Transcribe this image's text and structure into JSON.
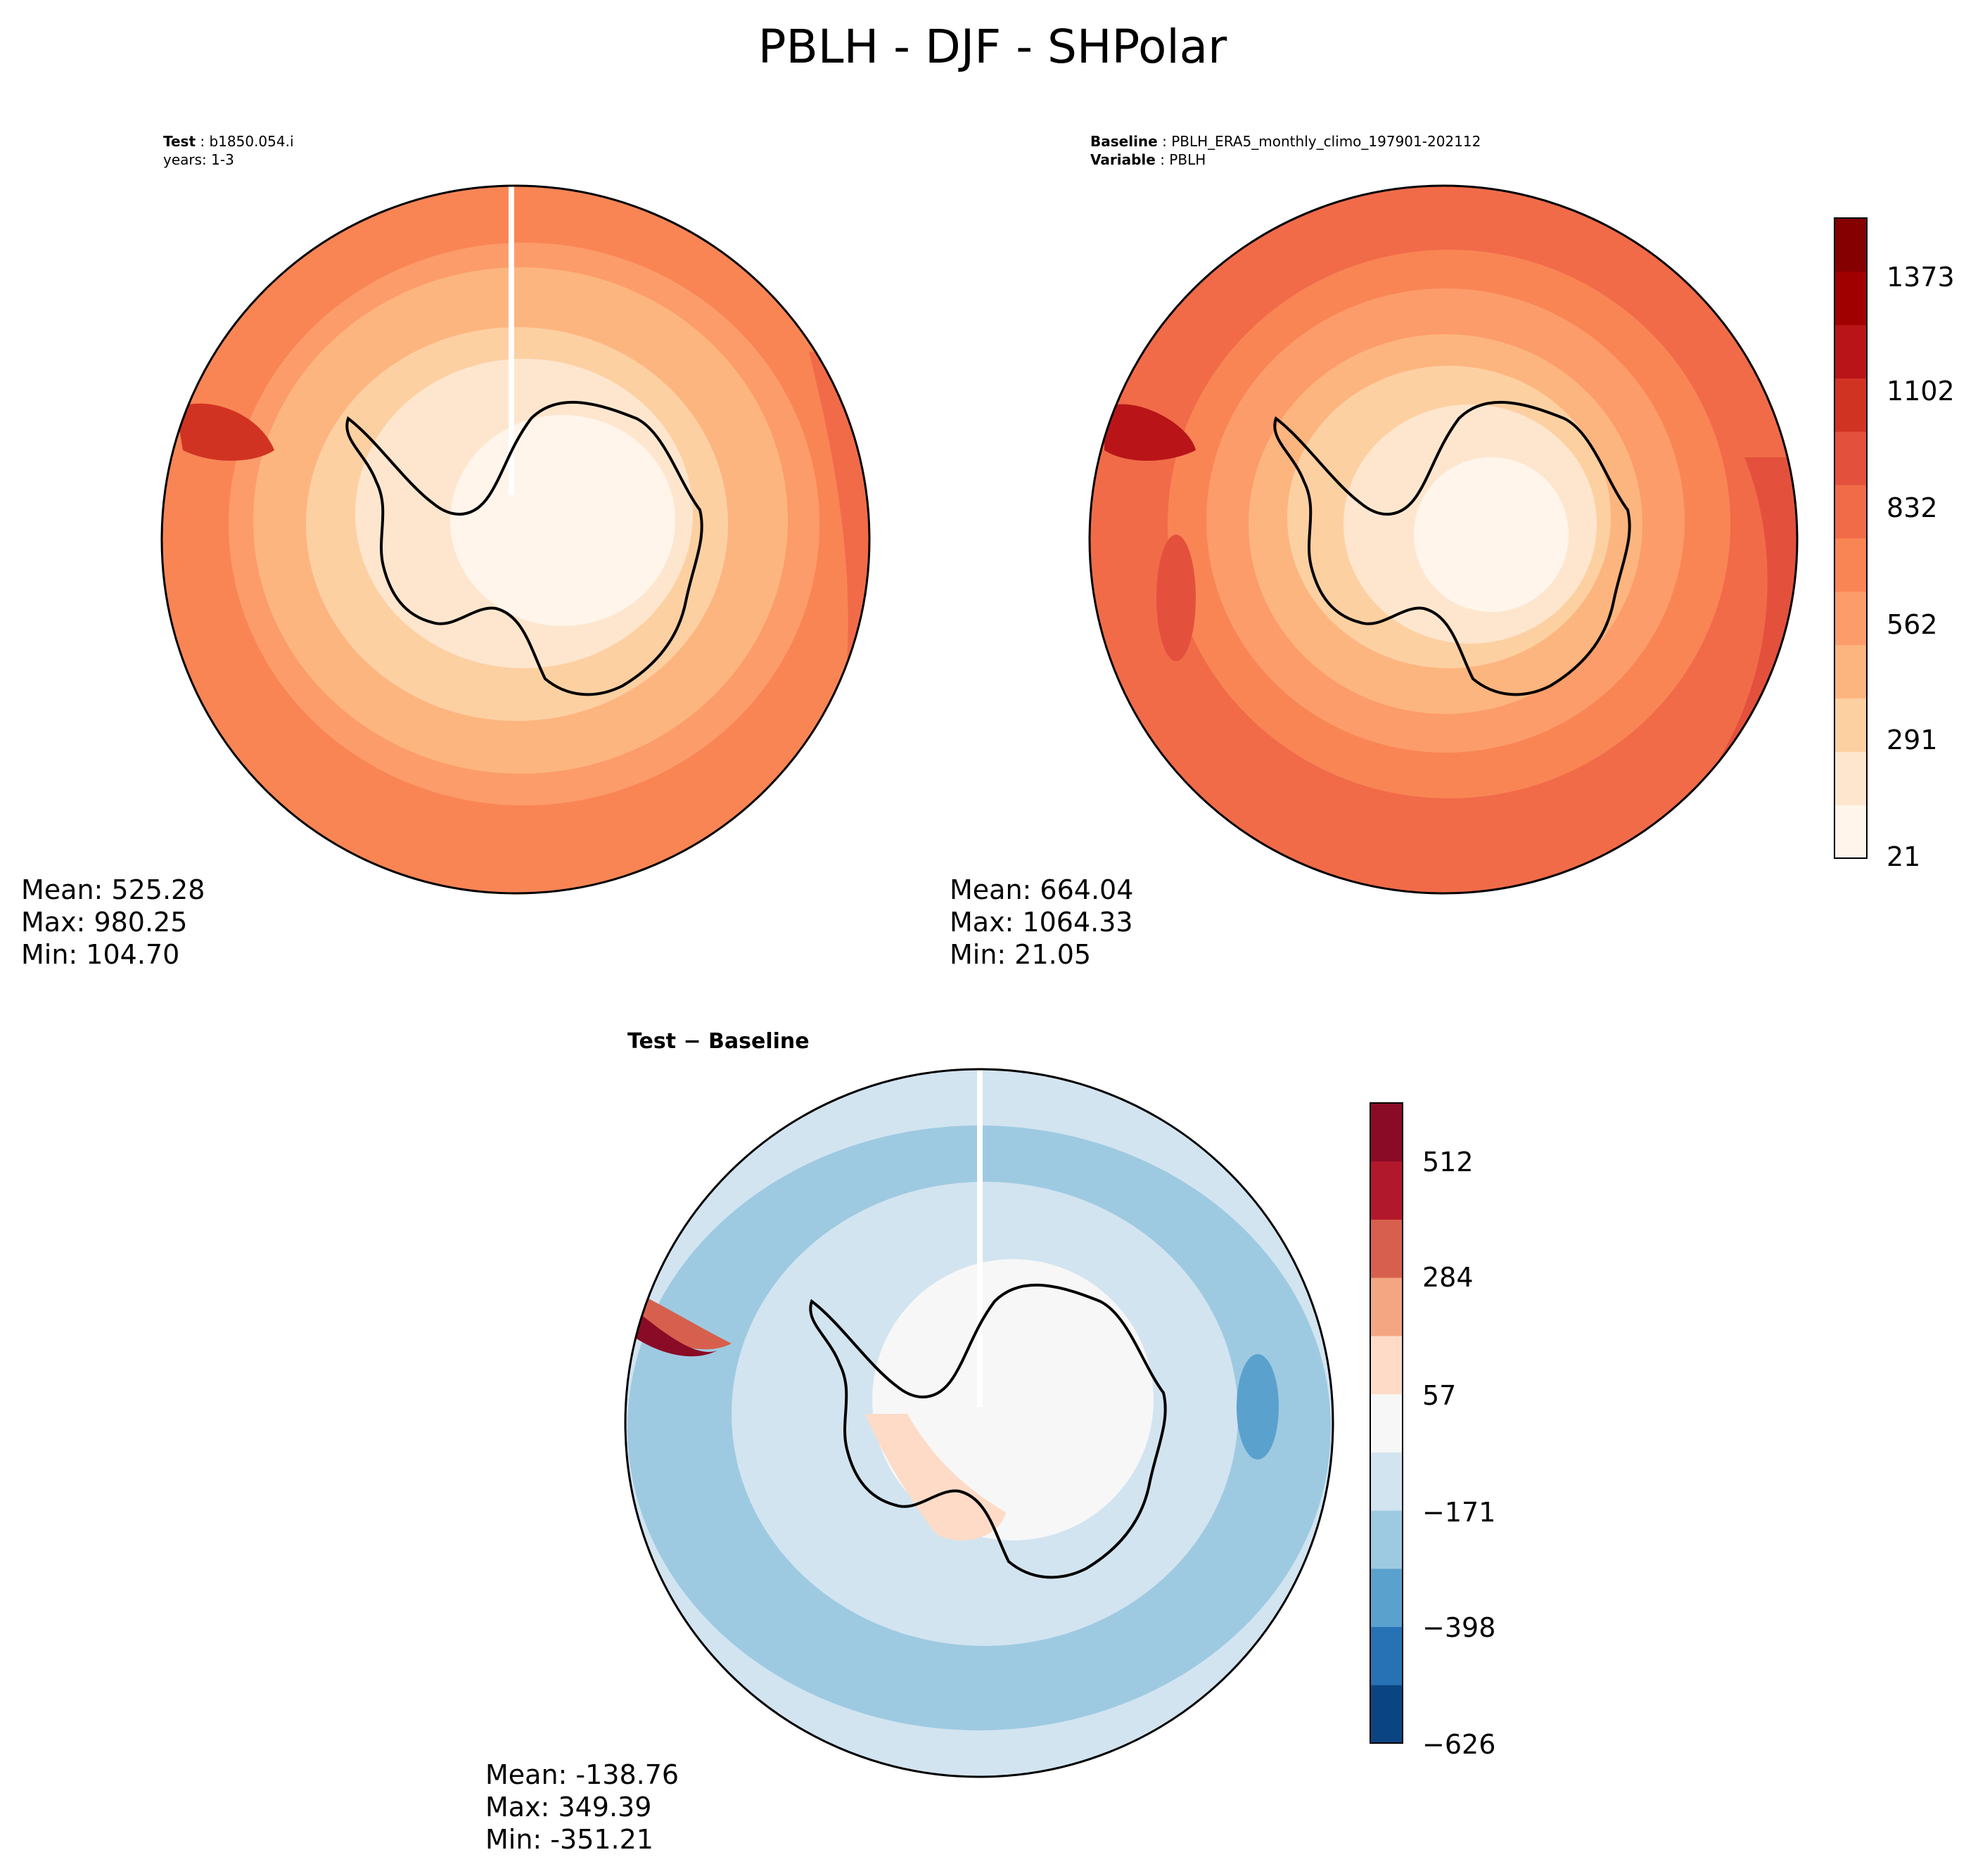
{
  "figure_title": "PBLH - DJF - SHPolar",
  "test_panel": {
    "label_key": "Test",
    "label_value": "b1850.054.i",
    "years_line": "years: 1-3",
    "stats": [
      "Mean: 525.28",
      "Max: 980.25",
      "Min: 104.70"
    ]
  },
  "baseline_panel": {
    "label_key": "Baseline",
    "label_value": "PBLH_ERA5_monthly_climo_197901-202112",
    "variable_key": "Variable",
    "variable_value": "PBLH",
    "stats": [
      "Mean: 664.04",
      "Max: 1064.33",
      "Min: 21.05"
    ]
  },
  "diff_panel": {
    "title": "Test − Baseline",
    "stats": [
      "Mean: -138.76",
      "Max: 349.39",
      "Min: -351.21"
    ]
  },
  "colorbar_main": {
    "ticks": [
      "1373",
      "1102",
      "832",
      "562",
      "291",
      "21"
    ],
    "colors": [
      "#fff5eb",
      "#fee6ce",
      "#fdd0a2",
      "#fdb57f",
      "#fc9c6a",
      "#f98555",
      "#f16b49",
      "#e3513d",
      "#d13323",
      "#b91519",
      "#a10000",
      "#850000"
    ]
  },
  "colorbar_diff": {
    "ticks": [
      "512",
      "284",
      "57",
      "−171",
      "−398",
      "−626"
    ],
    "colors": [
      "#0b4482",
      "#2672b4",
      "#5aa1ce",
      "#9ecae1",
      "#d2e4f0",
      "#f7f7f7",
      "#fddbc7",
      "#f4a582",
      "#d6604d",
      "#b2182b",
      "#8a0b25"
    ]
  }
}
